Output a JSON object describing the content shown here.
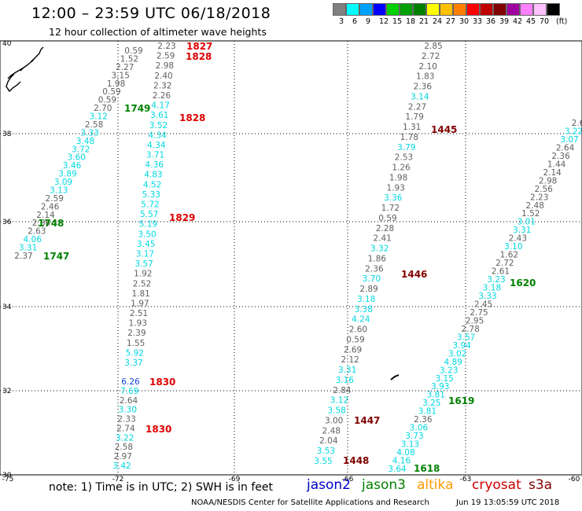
{
  "header": {
    "title": "12:00 – 23:59 UTC 06/18/2018",
    "subtitle": "12 hour collection of altimeter wave heights"
  },
  "legend": {
    "colors": [
      "#808080",
      "#00ffff",
      "#00a0ff",
      "#0000ff",
      "#00d000",
      "#00a000",
      "#008000",
      "#ffff00",
      "#ffc000",
      "#ff8000",
      "#ff0000",
      "#c00000",
      "#800000",
      "#a000a0",
      "#ff80ff",
      "#ffc0ff",
      "#000000"
    ],
    "labels": [
      "3",
      "6",
      "9",
      "12",
      "15",
      "18",
      "21",
      "24",
      "27",
      "30",
      "33",
      "36",
      "39",
      "42",
      "45",
      "70",
      "(ft)"
    ]
  },
  "axes": {
    "lon_ticks": [
      "-75",
      "-72",
      "-69",
      "-66",
      "-63",
      "-60"
    ],
    "lat_ticks": [
      "40",
      "38",
      "36",
      "34",
      "32",
      "30"
    ]
  },
  "tracks": {
    "track_a": {
      "values": [
        "0.59",
        "1.52",
        "2.27",
        "3.15",
        "1.98",
        "0.59",
        "0.59",
        "2.70",
        "3.12",
        "2.58",
        "3.33",
        "3.48",
        "3.72",
        "3.60",
        "3.46",
        "3.89",
        "3.09",
        "3.13",
        "2.59",
        "2.46",
        "2.14",
        "2.86",
        "2.63",
        "4.06",
        "3.31",
        "2.37"
      ],
      "colors": [
        "g",
        "g",
        "g",
        "g",
        "g",
        "g",
        "g",
        "g",
        "c",
        "g",
        "c",
        "c",
        "c",
        "c",
        "c",
        "c",
        "c",
        "c",
        "g",
        "g",
        "g",
        "g",
        "g",
        "c",
        "c",
        "g"
      ],
      "times": [
        "1749",
        "1748",
        "1747"
      ]
    },
    "track_b": {
      "values": [
        "2.23",
        "2.59",
        "2.98",
        "2.40",
        "2.32",
        "2.26",
        "4.17",
        "3.61",
        "3.52",
        "4.34",
        "4.34",
        "3.71",
        "4.36",
        "4.83",
        "4.52",
        "5.33",
        "5.72",
        "5.57",
        "5.19",
        "3.50",
        "3.45",
        "3.17",
        "3.57",
        "1.92",
        "2.52",
        "1.81",
        "1.97",
        "2.51",
        "1.93",
        "2.39",
        "1.55",
        "5.92",
        "3.37"
      ],
      "colors": [
        "g",
        "g",
        "g",
        "g",
        "g",
        "g",
        "c",
        "c",
        "c",
        "c",
        "c",
        "c",
        "c",
        "c",
        "c",
        "c",
        "c",
        "c",
        "c",
        "c",
        "c",
        "c",
        "c",
        "g",
        "g",
        "g",
        "g",
        "g",
        "g",
        "g",
        "g",
        "c",
        "c"
      ],
      "times": [
        "1827",
        "1828",
        "1828",
        "1829"
      ]
    },
    "track_c": {
      "values": [
        "6.26",
        "7.69",
        "2.64",
        "3.30",
        "2.33",
        "2.74",
        "3.22",
        "2.58",
        "2.97",
        "3.42"
      ],
      "colors": [
        "b",
        "c",
        "g",
        "c",
        "g",
        "g",
        "c",
        "g",
        "g",
        "c"
      ],
      "times": [
        "1830",
        "1830"
      ]
    },
    "track_d": {
      "values": [
        "2.85",
        "2.72",
        "2.10",
        "1.83",
        "2.36",
        "3.14",
        "2.27",
        "1.79",
        "1.31",
        "1.78",
        "3.79",
        "2.53",
        "1.26",
        "1.98",
        "1.93",
        "3.36",
        "1.72",
        "0.59",
        "2.28",
        "2.41",
        "3.32",
        "1.86",
        "2.36",
        "3.70",
        "2.89",
        "3.18",
        "3.38",
        "4.24",
        "2.60",
        "0.59",
        "2.69",
        "2.12",
        "3.31",
        "3.16",
        "2.84",
        "3.12",
        "3.58",
        "3.00",
        "2.48",
        "2.04",
        "3.53",
        "3.55"
      ],
      "colors": [
        "g",
        "g",
        "g",
        "g",
        "g",
        "c",
        "g",
        "g",
        "g",
        "g",
        "c",
        "g",
        "g",
        "g",
        "g",
        "c",
        "g",
        "g",
        "g",
        "g",
        "c",
        "g",
        "g",
        "c",
        "g",
        "c",
        "c",
        "c",
        "g",
        "g",
        "g",
        "g",
        "c",
        "c",
        "g",
        "c",
        "c",
        "g",
        "g",
        "g",
        "c",
        "c"
      ],
      "times": [
        "1445",
        "1446",
        "1447",
        "1448"
      ]
    },
    "track_e": {
      "values": [
        "2.6",
        "3.22",
        "3.07",
        "2.64",
        "2.36",
        "1.44",
        "2.14",
        "2.98",
        "2.56",
        "2.23",
        "2.48",
        "1.52",
        "3.01",
        "3.31",
        "2.43",
        "3.10",
        "1.62",
        "2.72",
        "2.61",
        "3.23",
        "3.18",
        "3.33",
        "2.45",
        "2.75",
        "2.95",
        "2.78",
        "3.57",
        "3.94",
        "3.02",
        "4.89",
        "3.23",
        "3.15",
        "3.93",
        "3.81",
        "3.25",
        "3.81",
        "2.36",
        "3.06",
        "3.73",
        "3.13",
        "4.08",
        "4.16",
        "3.64"
      ],
      "colors": [
        "g",
        "c",
        "c",
        "g",
        "g",
        "g",
        "g",
        "g",
        "g",
        "g",
        "g",
        "g",
        "c",
        "c",
        "g",
        "c",
        "g",
        "g",
        "g",
        "c",
        "c",
        "c",
        "g",
        "g",
        "g",
        "g",
        "c",
        "c",
        "c",
        "c",
        "c",
        "c",
        "c",
        "c",
        "c",
        "c",
        "g",
        "c",
        "c",
        "c",
        "c",
        "c",
        "c"
      ],
      "times": [
        "1620",
        "1619",
        "1618"
      ]
    }
  },
  "footer": {
    "note": "note:  1) Time is in UTC;  2) SWH is in feet",
    "satellites": [
      {
        "name": "jason2",
        "color": "#0000cc"
      },
      {
        "name": "jason3",
        "color": "#008000"
      },
      {
        "name": "altika",
        "color": "#ff9900"
      },
      {
        "name": "cryosat",
        "color": "#cc0000"
      },
      {
        "name": "s3a",
        "color": "#800000"
      }
    ],
    "credit": "NOAA/NESDIS Center for Satellite Applications and Research",
    "timestamp": "Jun 19 13:05:59 UTC 2018"
  }
}
